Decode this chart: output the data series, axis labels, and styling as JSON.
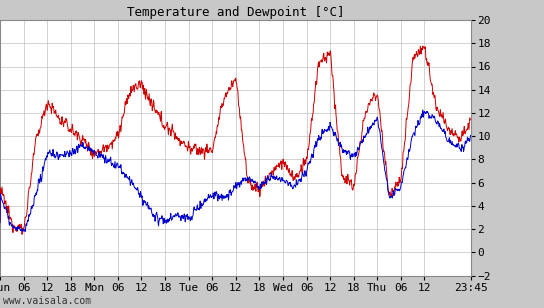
{
  "title": "Temperature and Dewpoint [°C]",
  "ylim": [
    -2,
    20
  ],
  "yticks": [
    -2,
    0,
    2,
    4,
    6,
    8,
    10,
    12,
    14,
    16,
    18,
    20
  ],
  "x_tick_positions": [
    0,
    6,
    12,
    18,
    24,
    30,
    36,
    42,
    48,
    54,
    60,
    66,
    72,
    78,
    84,
    90,
    96,
    102,
    108,
    119.75
  ],
  "x_tick_labels": [
    "Sun",
    "06",
    "12",
    "18",
    "Mon",
    "06",
    "12",
    "18",
    "Tue",
    "06",
    "12",
    "18",
    "Wed",
    "06",
    "12",
    "18",
    "Thu",
    "06",
    "12",
    "23:45"
  ],
  "xlim": [
    0,
    119.75
  ],
  "outer_bg": "#c8c8c8",
  "plot_bg": "#ffffff",
  "grid_color": "#c0c0c0",
  "temp_color": "#cc0000",
  "dewp_color": "#0000cc",
  "watermark": "www.vaisala.com",
  "line_width": 0.7,
  "title_fontsize": 9,
  "tick_fontsize": 8,
  "watermark_fontsize": 7
}
